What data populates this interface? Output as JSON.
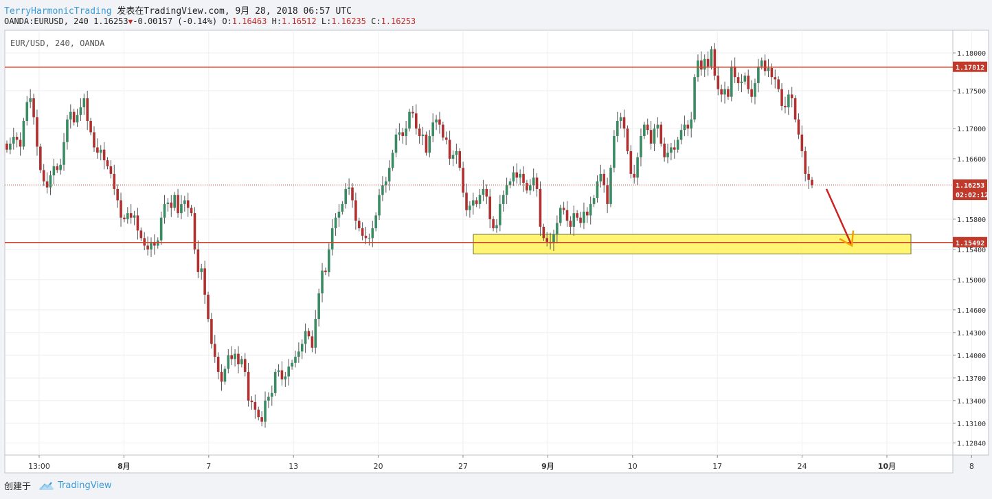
{
  "header": {
    "author": "TerryHarmonicTrading",
    "published_on": "发表在TradingView.com, 9月 28, 2018 06:57 UTC",
    "symbol": "OANDA:EURUSD, 240",
    "last": "1.16253",
    "change": "-0.00157 (-0.14%)",
    "o_label": "O:",
    "o_value": "1.16463",
    "h_label": "H:",
    "h_value": "1.16512",
    "l_label": "L:",
    "l_value": "1.16235",
    "c_label": "C:",
    "c_value": "1.16253"
  },
  "footer": {
    "created_with": "创建于",
    "brand": "TradingView"
  },
  "colors": {
    "up": "#3a8b63",
    "down": "#b03030",
    "resistance_line": "#d0452f",
    "zone_fill": "#fff35a",
    "arrow": "#cc2222",
    "arrow_head": "#f4a000",
    "price_tag": "#c0392b"
  },
  "chart_data": {
    "type": "candlestick",
    "title": "EUR/USD, 240, OANDA",
    "ylim": [
      1.1268,
      1.183
    ],
    "y_ticks": [
      "1.18000",
      "1.17500",
      "1.17000",
      "1.16600",
      "1.15800",
      "1.15400",
      "1.15000",
      "1.14600",
      "1.14300",
      "1.14000",
      "1.13700",
      "1.13400",
      "1.13100",
      "1.12840"
    ],
    "x_ticks": [
      "13:00",
      "8月",
      "7",
      "13",
      "20",
      "27",
      "9月",
      "10",
      "17",
      "24",
      "10月",
      "8"
    ],
    "bold_x_ticks": [
      "8月",
      "9月",
      "10月"
    ],
    "resistance_levels": [
      1.17812,
      1.15492
    ],
    "current_price": 1.16253,
    "countdown": "02:02:12",
    "support_zone": {
      "top": 1.156,
      "bottom": 1.1534
    },
    "forecast_arrow": {
      "from": 1.162,
      "to": 1.1545
    },
    "closes": [
      1.1672,
      1.168,
      1.1689,
      1.1685,
      1.1676,
      1.171,
      1.1735,
      1.174,
      1.1715,
      1.1676,
      1.1645,
      1.163,
      1.1622,
      1.1638,
      1.165,
      1.1645,
      1.1652,
      1.1682,
      1.1712,
      1.1722,
      1.1708,
      1.1718,
      1.1728,
      1.174,
      1.171,
      1.1695,
      1.1675,
      1.1668,
      1.1672,
      1.1658,
      1.165,
      1.164,
      1.162,
      1.1605,
      1.1582,
      1.158,
      1.1588,
      1.1582,
      1.1585,
      1.1565,
      1.1555,
      1.1545,
      1.154,
      1.155,
      1.1545,
      1.1552,
      1.1582,
      1.16,
      1.1602,
      1.1595,
      1.1612,
      1.1588,
      1.16,
      1.1605,
      1.1595,
      1.1588,
      1.154,
      1.151,
      1.1515,
      1.148,
      1.1448,
      1.1415,
      1.1398,
      1.1378,
      1.1365,
      1.1382,
      1.14,
      1.1395,
      1.1402,
      1.1388,
      1.1395,
      1.1378,
      1.134,
      1.1338,
      1.1328,
      1.1318,
      1.1312,
      1.134,
      1.1345,
      1.135,
      1.1378,
      1.138,
      1.1368,
      1.1372,
      1.1385,
      1.139,
      1.1398,
      1.1405,
      1.1415,
      1.1432,
      1.1425,
      1.141,
      1.1448,
      1.1482,
      1.1512,
      1.151,
      1.154,
      1.1568,
      1.1582,
      1.159,
      1.16,
      1.162,
      1.1622,
      1.1605,
      1.1578,
      1.1568,
      1.1558,
      1.1555,
      1.1555,
      1.1568,
      1.1585,
      1.1612,
      1.1625,
      1.163,
      1.1648,
      1.1668,
      1.1692,
      1.1695,
      1.169,
      1.17,
      1.1722,
      1.172,
      1.17,
      1.169,
      1.1692,
      1.1668,
      1.169,
      1.1708,
      1.1712,
      1.1705,
      1.1688,
      1.1685,
      1.166,
      1.1665,
      1.167,
      1.1648,
      1.1615,
      1.1592,
      1.1598,
      1.1605,
      1.16,
      1.1612,
      1.162,
      1.161,
      1.158,
      1.1568,
      1.1572,
      1.16,
      1.1612,
      1.1625,
      1.163,
      1.1642,
      1.1635,
      1.164,
      1.1628,
      1.1618,
      1.1625,
      1.1635,
      1.162,
      1.157,
      1.1555,
      1.155,
      1.1548,
      1.156,
      1.1575,
      1.1595,
      1.1592,
      1.1578,
      1.157,
      1.1588,
      1.1582,
      1.1575,
      1.159,
      1.1585,
      1.16,
      1.1608,
      1.163,
      1.164,
      1.1625,
      1.16,
      1.1648,
      1.169,
      1.171,
      1.1715,
      1.17,
      1.167,
      1.164,
      1.1635,
      1.1662,
      1.169,
      1.1705,
      1.1698,
      1.168,
      1.17,
      1.1705,
      1.168,
      1.1662,
      1.1668,
      1.1675,
      1.1672,
      1.1685,
      1.1698,
      1.1705,
      1.17,
      1.1712,
      1.1768,
      1.179,
      1.1778,
      1.1792,
      1.1782,
      1.1805,
      1.177,
      1.1752,
      1.1745,
      1.1752,
      1.1742,
      1.1782,
      1.1768,
      1.176,
      1.1762,
      1.177,
      1.1752,
      1.1742,
      1.176,
      1.1782,
      1.179,
      1.1776,
      1.178,
      1.1768,
      1.1765,
      1.1752,
      1.173,
      1.1728,
      1.1745,
      1.174,
      1.1712,
      1.1692,
      1.167,
      1.164,
      1.1632,
      1.1625
    ]
  }
}
